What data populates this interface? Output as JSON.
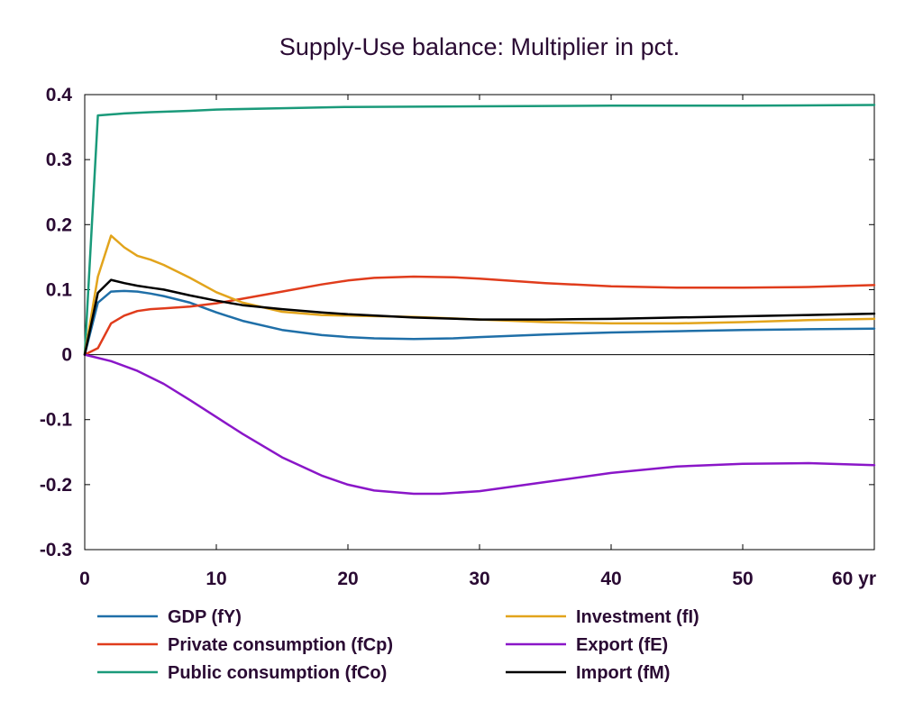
{
  "chart_data": {
    "type": "line",
    "title": "Supply-Use balance: Multiplier in pct.",
    "xlabel": "",
    "ylabel": "",
    "xlim": [
      0,
      60
    ],
    "ylim": [
      -0.3,
      0.4
    ],
    "x_ticks": [
      "0",
      "10",
      "20",
      "30",
      "40",
      "50",
      "60 yr"
    ],
    "x_tick_values": [
      0,
      10,
      20,
      30,
      40,
      50,
      60
    ],
    "y_ticks": [
      "0.4",
      "0.3",
      "0.2",
      "0.1",
      "0",
      "-0.1",
      "-0.2",
      "-0.3"
    ],
    "y_tick_values": [
      0.4,
      0.3,
      0.2,
      0.1,
      0,
      -0.1,
      -0.2,
      -0.3
    ],
    "grid": false,
    "zero_line": true,
    "legend_position": "bottom",
    "series": [
      {
        "name": "GDP (fY)",
        "color": "#1f6fa8",
        "points": [
          [
            0,
            0
          ],
          [
            1,
            0.08
          ],
          [
            2,
            0.097
          ],
          [
            3,
            0.098
          ],
          [
            4,
            0.097
          ],
          [
            5,
            0.094
          ],
          [
            6,
            0.09
          ],
          [
            8,
            0.08
          ],
          [
            10,
            0.065
          ],
          [
            12,
            0.052
          ],
          [
            15,
            0.038
          ],
          [
            18,
            0.03
          ],
          [
            20,
            0.027
          ],
          [
            22,
            0.025
          ],
          [
            25,
            0.024
          ],
          [
            28,
            0.025
          ],
          [
            30,
            0.027
          ],
          [
            35,
            0.031
          ],
          [
            40,
            0.034
          ],
          [
            45,
            0.036
          ],
          [
            50,
            0.038
          ],
          [
            55,
            0.039
          ],
          [
            60,
            0.04
          ]
        ]
      },
      {
        "name": "Private consumption (fCp)",
        "color": "#e03c1c",
        "points": [
          [
            0,
            0
          ],
          [
            1,
            0.01
          ],
          [
            2,
            0.048
          ],
          [
            3,
            0.06
          ],
          [
            4,
            0.067
          ],
          [
            5,
            0.07
          ],
          [
            6,
            0.071
          ],
          [
            8,
            0.074
          ],
          [
            10,
            0.079
          ],
          [
            12,
            0.086
          ],
          [
            15,
            0.097
          ],
          [
            18,
            0.108
          ],
          [
            20,
            0.114
          ],
          [
            22,
            0.118
          ],
          [
            25,
            0.12
          ],
          [
            28,
            0.119
          ],
          [
            30,
            0.117
          ],
          [
            35,
            0.11
          ],
          [
            40,
            0.105
          ],
          [
            45,
            0.103
          ],
          [
            50,
            0.103
          ],
          [
            55,
            0.104
          ],
          [
            60,
            0.107
          ]
        ]
      },
      {
        "name": "Public consumption (fCo)",
        "color": "#1a9a7a",
        "points": [
          [
            0,
            0
          ],
          [
            1,
            0.368
          ],
          [
            3,
            0.371
          ],
          [
            5,
            0.373
          ],
          [
            8,
            0.375
          ],
          [
            10,
            0.377
          ],
          [
            15,
            0.379
          ],
          [
            20,
            0.381
          ],
          [
            30,
            0.382
          ],
          [
            40,
            0.383
          ],
          [
            50,
            0.383
          ],
          [
            60,
            0.384
          ]
        ]
      },
      {
        "name": "Investment (fI)",
        "color": "#e2a41c",
        "points": [
          [
            0,
            0
          ],
          [
            1,
            0.12
          ],
          [
            2,
            0.183
          ],
          [
            3,
            0.165
          ],
          [
            4,
            0.152
          ],
          [
            5,
            0.146
          ],
          [
            6,
            0.138
          ],
          [
            8,
            0.118
          ],
          [
            10,
            0.096
          ],
          [
            12,
            0.08
          ],
          [
            15,
            0.066
          ],
          [
            18,
            0.061
          ],
          [
            20,
            0.06
          ],
          [
            25,
            0.058
          ],
          [
            30,
            0.054
          ],
          [
            35,
            0.05
          ],
          [
            40,
            0.048
          ],
          [
            45,
            0.048
          ],
          [
            50,
            0.05
          ],
          [
            55,
            0.053
          ],
          [
            60,
            0.055
          ]
        ]
      },
      {
        "name": "Export (fE)",
        "color": "#8a16c8",
        "points": [
          [
            0,
            0
          ],
          [
            2,
            -0.01
          ],
          [
            4,
            -0.025
          ],
          [
            6,
            -0.045
          ],
          [
            8,
            -0.07
          ],
          [
            10,
            -0.096
          ],
          [
            12,
            -0.122
          ],
          [
            15,
            -0.158
          ],
          [
            18,
            -0.186
          ],
          [
            20,
            -0.2
          ],
          [
            22,
            -0.209
          ],
          [
            25,
            -0.214
          ],
          [
            27,
            -0.214
          ],
          [
            30,
            -0.21
          ],
          [
            35,
            -0.196
          ],
          [
            40,
            -0.182
          ],
          [
            45,
            -0.172
          ],
          [
            50,
            -0.168
          ],
          [
            55,
            -0.167
          ],
          [
            60,
            -0.17
          ]
        ]
      },
      {
        "name": "Import (fM)",
        "color": "#000000",
        "points": [
          [
            0,
            0
          ],
          [
            1,
            0.095
          ],
          [
            2,
            0.115
          ],
          [
            3,
            0.11
          ],
          [
            4,
            0.106
          ],
          [
            5,
            0.103
          ],
          [
            6,
            0.1
          ],
          [
            8,
            0.091
          ],
          [
            10,
            0.083
          ],
          [
            12,
            0.076
          ],
          [
            15,
            0.07
          ],
          [
            18,
            0.065
          ],
          [
            20,
            0.062
          ],
          [
            25,
            0.057
          ],
          [
            30,
            0.054
          ],
          [
            35,
            0.054
          ],
          [
            40,
            0.055
          ],
          [
            45,
            0.057
          ],
          [
            50,
            0.059
          ],
          [
            55,
            0.061
          ],
          [
            60,
            0.063
          ]
        ]
      }
    ]
  }
}
